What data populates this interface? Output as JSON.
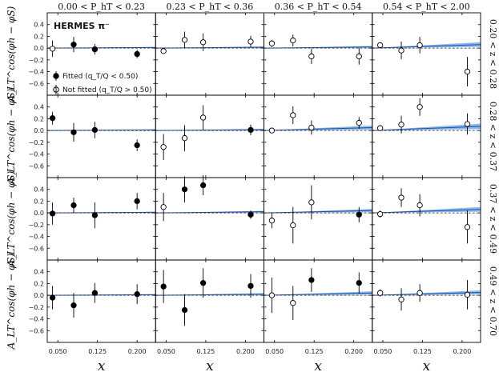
{
  "chart_data": {
    "type": "scatter",
    "experiment_title": "HERMES π⁻",
    "xlabel": "x",
    "ylabel": "A_LT^cos(φh − φS)",
    "col_bins": [
      "0.00 < P_hT < 0.23",
      "0.23 < P_hT < 0.36",
      "0.36 < P_hT < 0.54",
      "0.54 < P_hT < 2.00"
    ],
    "row_bins": [
      "0.20 < z < 0.28",
      "0.28 < z < 0.37",
      "0.37 < z < 0.49",
      "0.49 < z < 0.70"
    ],
    "xlim": [
      0.03,
      0.235
    ],
    "ylim": [
      -0.8,
      0.6
    ],
    "xticks": [
      0.05,
      0.125,
      0.2
    ],
    "xtick_labels": [
      "0.050",
      "0.125",
      "0.200"
    ],
    "yticks": [
      0.4,
      0.2,
      0.0,
      -0.2,
      -0.4,
      -0.6
    ],
    "ytick_labels": [
      "0.4",
      "0.2",
      "0.0",
      "−0.2",
      "−0.4",
      "−0.6"
    ],
    "legend": {
      "fitted": "Fitted",
      "fitted_cut": "(q_T/Q < 0.50)",
      "not_fitted": "Not fitted",
      "not_fitted_cut": "(q_T/Q > 0.50)"
    },
    "colors": {
      "band": "#6fa8e8",
      "central": "#1f4fa0",
      "zero_line": "#222222",
      "points": "#000000"
    },
    "panels": [
      [
        {
          "x": [
            0.04,
            0.08,
            0.12,
            0.2
          ],
          "y": [
            -0.01,
            0.06,
            -0.02,
            -0.1
          ],
          "err": [
            0.14,
            0.13,
            0.09,
            0.07
          ],
          "filled": [
            false,
            true,
            true,
            true
          ],
          "band": [
            [
              0.0,
              0.0
            ],
            [
              0.235,
              0.01
            ]
          ]
        },
        {
          "x": [
            0.045,
            0.085,
            0.12,
            0.21
          ],
          "y": [
            -0.05,
            0.14,
            0.1,
            0.11
          ],
          "err": [
            0.05,
            0.14,
            0.15,
            0.1
          ],
          "filled": [
            false,
            false,
            false,
            false
          ],
          "band": [
            [
              0.0,
              0.0
            ],
            [
              0.235,
              0.015
            ]
          ]
        },
        {
          "x": [
            0.045,
            0.085,
            0.12,
            0.21
          ],
          "y": [
            0.08,
            0.13,
            -0.14,
            -0.14
          ],
          "err": [
            0.06,
            0.1,
            0.13,
            0.14
          ],
          "filled": [
            false,
            false,
            false,
            false
          ],
          "band": [
            [
              0.0,
              0.0
            ],
            [
              0.235,
              0.02
            ]
          ]
        },
        {
          "x": [
            0.045,
            0.085,
            0.12,
            0.21
          ],
          "y": [
            0.05,
            -0.04,
            0.05,
            -0.4
          ],
          "err": [
            0.05,
            0.15,
            0.14,
            0.25
          ],
          "filled": [
            false,
            false,
            false,
            false
          ],
          "band": [
            [
              0.0,
              0.0
            ],
            [
              0.235,
              0.06
            ]
          ]
        }
      ],
      [
        {
          "x": [
            0.04,
            0.08,
            0.12,
            0.2
          ],
          "y": [
            0.21,
            -0.03,
            0.01,
            -0.25
          ],
          "err": [
            0.11,
            0.16,
            0.14,
            0.1
          ],
          "filled": [
            true,
            true,
            true,
            true
          ],
          "band": [
            [
              0.0,
              0.0
            ],
            [
              0.235,
              0.01
            ]
          ]
        },
        {
          "x": [
            0.045,
            0.085,
            0.12,
            0.21
          ],
          "y": [
            -0.28,
            -0.13,
            0.22,
            0.01
          ],
          "err": [
            0.22,
            0.22,
            0.21,
            0.09
          ],
          "filled": [
            false,
            false,
            false,
            true
          ],
          "band": [
            [
              0.0,
              0.0
            ],
            [
              0.235,
              0.015
            ]
          ]
        },
        {
          "x": [
            0.045,
            0.085,
            0.12,
            0.21
          ],
          "y": [
            0.0,
            0.26,
            0.05,
            0.13
          ],
          "err": [
            0.03,
            0.15,
            0.12,
            0.1
          ],
          "filled": [
            false,
            false,
            false,
            false
          ],
          "band": [
            [
              0.0,
              0.0
            ],
            [
              0.235,
              0.05
            ]
          ]
        },
        {
          "x": [
            0.045,
            0.085,
            0.12,
            0.21
          ],
          "y": [
            0.04,
            0.1,
            0.4,
            0.11
          ],
          "err": [
            0.04,
            0.15,
            0.15,
            0.18
          ],
          "filled": [
            false,
            false,
            false,
            false
          ],
          "band": [
            [
              0.0,
              0.0
            ],
            [
              0.235,
              0.07
            ]
          ]
        }
      ],
      [
        {
          "x": [
            0.04,
            0.08,
            0.12,
            0.2
          ],
          "y": [
            -0.01,
            0.13,
            -0.04,
            0.2
          ],
          "err": [
            0.19,
            0.13,
            0.22,
            0.14
          ],
          "filled": [
            true,
            true,
            true,
            true
          ],
          "band": [
            [
              0.0,
              0.0
            ],
            [
              0.235,
              0.01
            ]
          ]
        },
        {
          "x": [
            0.045,
            0.085,
            0.12,
            0.21
          ],
          "y": [
            0.1,
            0.4,
            0.47,
            -0.03
          ],
          "err": [
            0.24,
            0.22,
            0.17,
            0.07
          ],
          "filled": [
            false,
            true,
            true,
            true
          ],
          "band": [
            [
              0.0,
              0.0
            ],
            [
              0.235,
              0.02
            ]
          ]
        },
        {
          "x": [
            0.045,
            0.085,
            0.12,
            0.21
          ],
          "y": [
            -0.13,
            -0.21,
            0.18,
            -0.03
          ],
          "err": [
            0.13,
            0.31,
            0.29,
            0.13
          ],
          "filled": [
            false,
            false,
            false,
            true
          ],
          "band": [
            [
              0.0,
              0.0
            ],
            [
              0.235,
              0.04
            ]
          ]
        },
        {
          "x": [
            0.045,
            0.085,
            0.12,
            0.21
          ],
          "y": [
            -0.02,
            0.26,
            0.13,
            -0.24
          ],
          "err": [
            0.06,
            0.16,
            0.19,
            0.28
          ],
          "filled": [
            false,
            false,
            false,
            false
          ],
          "band": [
            [
              0.0,
              0.0
            ],
            [
              0.235,
              0.06
            ]
          ]
        }
      ],
      [
        {
          "x": [
            0.04,
            0.08,
            0.12,
            0.2
          ],
          "y": [
            -0.04,
            -0.17,
            0.04,
            0.02
          ],
          "err": [
            0.2,
            0.21,
            0.17,
            0.17
          ],
          "filled": [
            true,
            true,
            true,
            true
          ],
          "band": [
            [
              0.0,
              0.0
            ],
            [
              0.235,
              0.01
            ]
          ]
        },
        {
          "x": [
            0.045,
            0.085,
            0.12,
            0.21
          ],
          "y": [
            0.15,
            -0.25,
            0.21,
            0.16
          ],
          "err": [
            0.28,
            0.27,
            0.25,
            0.2
          ],
          "filled": [
            true,
            true,
            true,
            true
          ],
          "band": [
            [
              0.0,
              0.0
            ],
            [
              0.235,
              0.02
            ]
          ]
        },
        {
          "x": [
            0.045,
            0.085,
            0.12,
            0.21
          ],
          "y": [
            0.0,
            -0.13,
            0.26,
            0.21
          ],
          "err": [
            0.3,
            0.29,
            0.2,
            0.18
          ],
          "filled": [
            false,
            false,
            true,
            true
          ],
          "band": [
            [
              0.0,
              0.0
            ],
            [
              0.235,
              0.04
            ]
          ]
        },
        {
          "x": [
            0.045,
            0.085,
            0.12,
            0.21
          ],
          "y": [
            0.04,
            -0.07,
            0.04,
            0.01
          ],
          "err": [
            0.06,
            0.19,
            0.15,
            0.25
          ],
          "filled": [
            false,
            false,
            false,
            false
          ],
          "band": [
            [
              0.0,
              0.0
            ],
            [
              0.235,
              0.05
            ]
          ]
        }
      ]
    ]
  }
}
